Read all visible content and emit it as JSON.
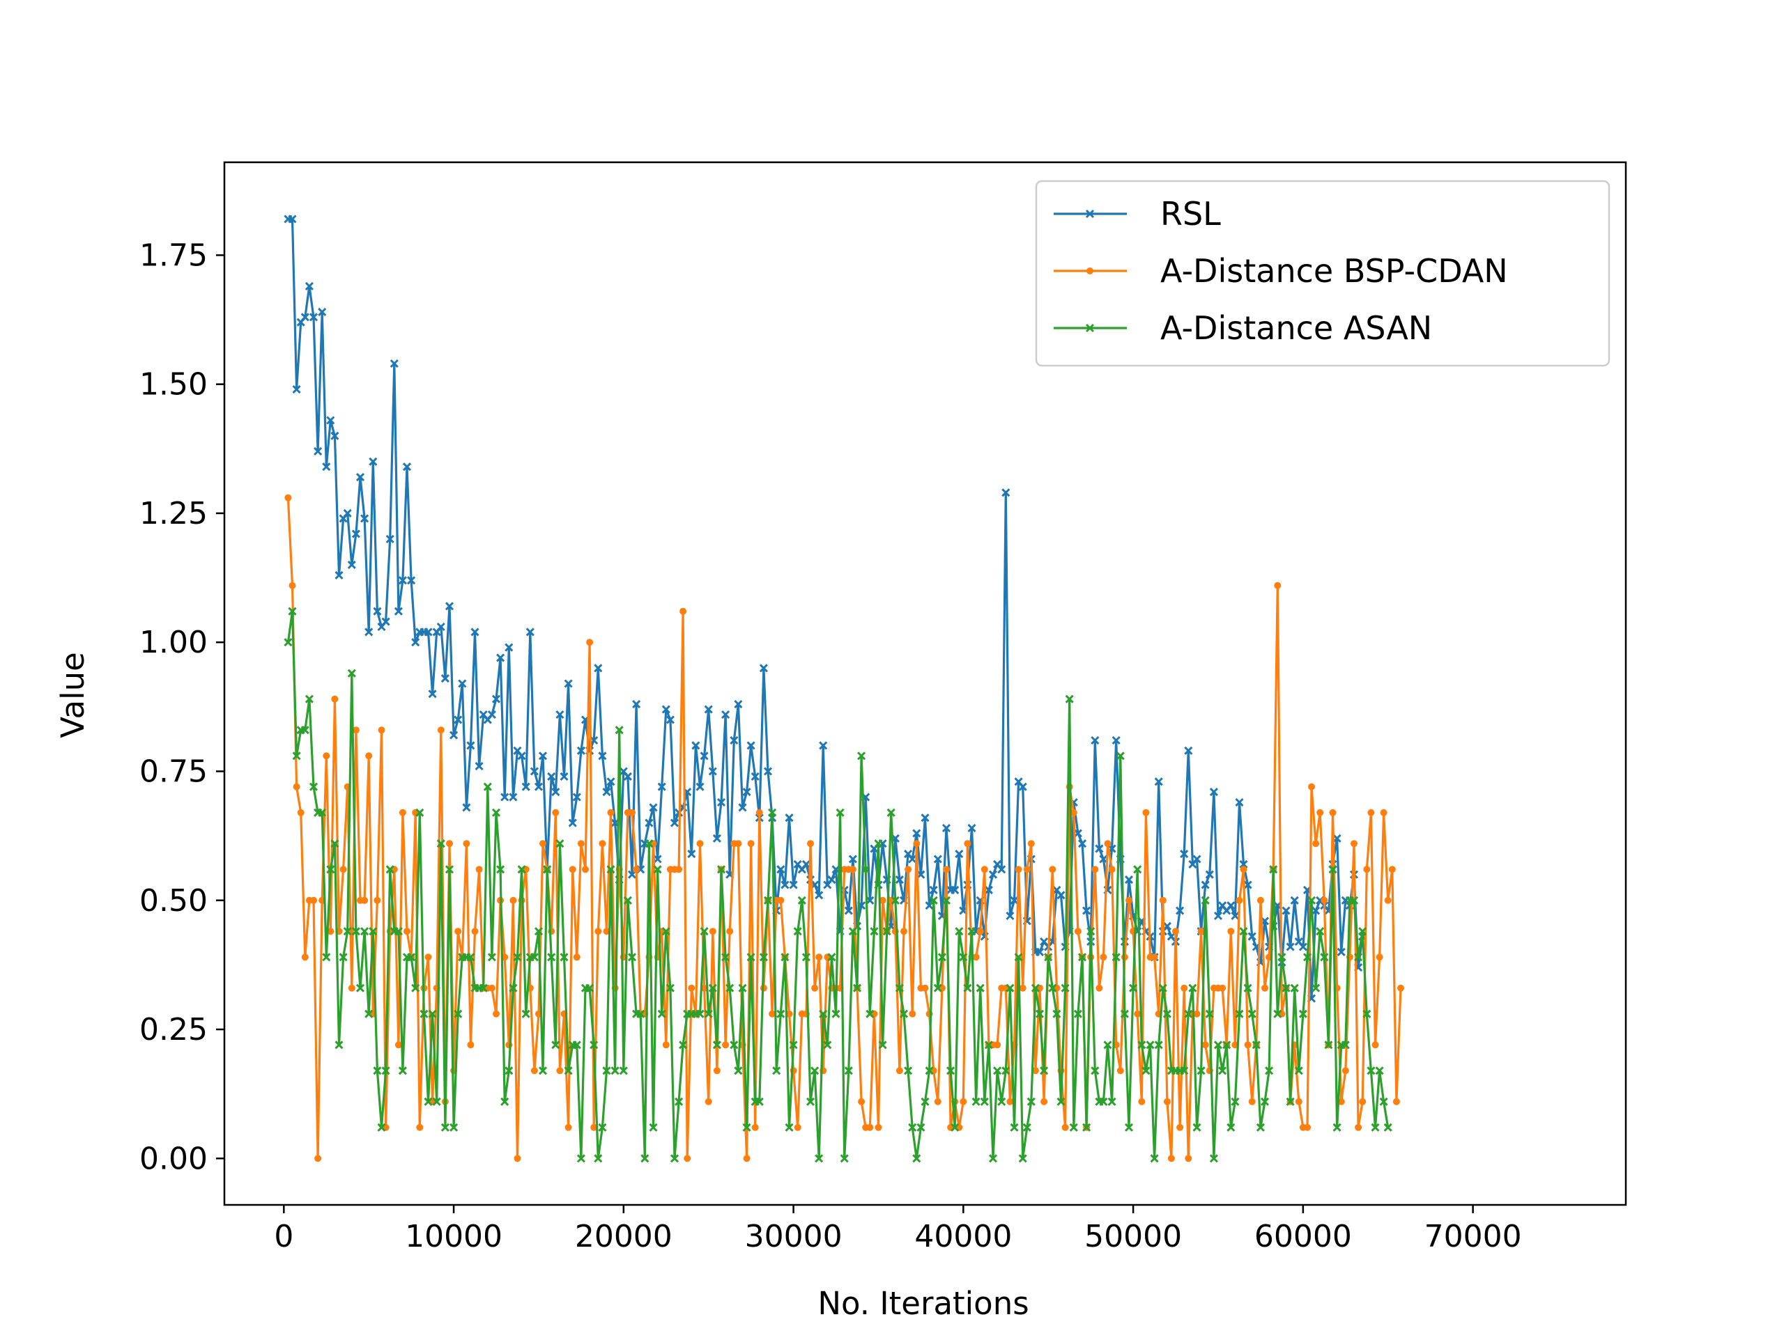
{
  "chart_data": {
    "type": "line",
    "title": "",
    "xlabel": "No. Iterations",
    "ylabel": "Value",
    "xlim": [
      -3500,
      79000
    ],
    "ylim": [
      -0.09,
      1.93
    ],
    "x_ticks": [
      0,
      10000,
      20000,
      30000,
      40000,
      50000,
      60000,
      70000
    ],
    "x_tick_labels": [
      "0",
      "10000",
      "20000",
      "30000",
      "40000",
      "50000",
      "60000",
      "70000"
    ],
    "y_ticks": [
      0.0,
      0.25,
      0.5,
      0.75,
      1.0,
      1.25,
      1.5,
      1.75
    ],
    "y_tick_labels": [
      "0.00",
      "0.25",
      "0.50",
      "0.75",
      "1.00",
      "1.25",
      "1.50",
      "1.75"
    ],
    "grid": false,
    "legend_position": "top-right",
    "x_start": 250,
    "x_step": 250,
    "series": [
      {
        "name": "RSL",
        "color": "#1f77b4",
        "marker": "x",
        "values": [
          1.82,
          1.82,
          1.49,
          1.62,
          1.63,
          1.69,
          1.63,
          1.37,
          1.64,
          1.34,
          1.43,
          1.4,
          1.13,
          1.24,
          1.25,
          1.15,
          1.21,
          1.32,
          1.24,
          1.02,
          1.35,
          1.06,
          1.03,
          1.04,
          1.2,
          1.54,
          1.06,
          1.12,
          1.34,
          1.12,
          1.0,
          1.02,
          1.02,
          1.02,
          0.9,
          1.02,
          1.03,
          0.93,
          1.07,
          0.82,
          0.85,
          0.92,
          0.68,
          0.8,
          1.02,
          0.76,
          0.86,
          0.85,
          0.86,
          0.89,
          0.97,
          0.7,
          0.99,
          0.7,
          0.79,
          0.78,
          0.72,
          1.02,
          0.75,
          0.72,
          0.78,
          0.56,
          0.74,
          0.71,
          0.86,
          0.74,
          0.92,
          0.65,
          0.7,
          0.79,
          0.85,
          0.79,
          0.81,
          0.95,
          0.78,
          0.71,
          0.73,
          0.65,
          0.54,
          0.75,
          0.74,
          0.55,
          0.88,
          0.56,
          0.61,
          0.65,
          0.68,
          0.58,
          0.72,
          0.87,
          0.85,
          0.65,
          0.67,
          0.68,
          0.71,
          0.59,
          0.8,
          0.72,
          0.78,
          0.87,
          0.75,
          0.62,
          0.69,
          0.86,
          0.55,
          0.81,
          0.88,
          0.68,
          0.71,
          0.8,
          0.74,
          0.66,
          0.95,
          0.75,
          0.66,
          0.48,
          0.56,
          0.53,
          0.66,
          0.53,
          0.57,
          0.56,
          0.57,
          0.54,
          0.53,
          0.51,
          0.8,
          0.53,
          0.54,
          0.56,
          0.44,
          0.52,
          0.48,
          0.58,
          0.45,
          0.49,
          0.7,
          0.5,
          0.6,
          0.53,
          0.61,
          0.54,
          0.45,
          0.62,
          0.54,
          0.5,
          0.59,
          0.58,
          0.63,
          0.55,
          0.66,
          0.49,
          0.52,
          0.58,
          0.47,
          0.64,
          0.52,
          0.52,
          0.59,
          0.48,
          0.53,
          0.64,
          0.44,
          0.5,
          0.43,
          0.52,
          0.55,
          0.57,
          0.56,
          1.29,
          0.47,
          0.5,
          0.73,
          0.72,
          0.46,
          0.58,
          0.4,
          0.4,
          0.42,
          0.41,
          0.42,
          0.52,
          0.51,
          0.41,
          0.44,
          0.69,
          0.63,
          0.61,
          0.48,
          0.42,
          0.81,
          0.6,
          0.58,
          0.52,
          0.6,
          0.81,
          0.58,
          0.42,
          0.54,
          0.47,
          0.44,
          0.46,
          0.44,
          0.43,
          0.39,
          0.73,
          0.44,
          0.45,
          0.43,
          0.42,
          0.48,
          0.59,
          0.79,
          0.57,
          0.58,
          0.44,
          0.53,
          0.55,
          0.71,
          0.47,
          0.49,
          0.48,
          0.49,
          0.47,
          0.69,
          0.57,
          0.53,
          0.43,
          0.41,
          0.38,
          0.46,
          0.41,
          0.45,
          0.49,
          0.38,
          0.48,
          0.41,
          0.5,
          0.42,
          0.41,
          0.52,
          0.31,
          0.48,
          0.5,
          0.49,
          0.48,
          0.57,
          0.62,
          0.4,
          0.5,
          0.49,
          0.55,
          0.37,
          0.43
        ]
      },
      {
        "name": "A-Distance BSP-CDAN",
        "color": "#ff7f0e",
        "marker": "dot",
        "values": [
          1.28,
          1.11,
          0.72,
          0.67,
          0.39,
          0.5,
          0.5,
          0.0,
          0.5,
          0.78,
          0.44,
          0.89,
          0.44,
          0.56,
          0.72,
          0.33,
          0.83,
          0.5,
          0.5,
          0.78,
          0.28,
          0.5,
          0.83,
          0.06,
          0.44,
          0.56,
          0.22,
          0.67,
          0.44,
          0.39,
          0.67,
          0.06,
          0.33,
          0.39,
          0.11,
          0.33,
          0.83,
          0.11,
          0.61,
          0.17,
          0.44,
          0.39,
          0.61,
          0.22,
          0.44,
          0.56,
          0.33,
          0.33,
          0.33,
          0.28,
          0.5,
          0.39,
          0.22,
          0.5,
          0.0,
          0.5,
          0.56,
          0.33,
          0.17,
          0.28,
          0.61,
          0.56,
          0.44,
          0.67,
          0.17,
          0.28,
          0.06,
          0.56,
          0.39,
          0.61,
          0.56,
          1.0,
          0.06,
          0.44,
          0.61,
          0.44,
          0.67,
          0.33,
          0.56,
          0.39,
          0.67,
          0.67,
          0.56,
          0.28,
          0.28,
          0.39,
          0.61,
          0.39,
          0.44,
          0.22,
          0.56,
          0.56,
          0.56,
          1.06,
          0.0,
          0.33,
          0.28,
          0.61,
          0.33,
          0.11,
          0.44,
          0.17,
          0.56,
          0.22,
          0.44,
          0.61,
          0.61,
          0.22,
          0.0,
          0.61,
          0.06,
          0.67,
          0.33,
          0.5,
          0.28,
          0.5,
          0.5,
          0.39,
          0.28,
          0.17,
          0.06,
          0.28,
          0.28,
          0.61,
          0.33,
          0.39,
          0.17,
          0.39,
          0.33,
          0.33,
          0.33,
          0.56,
          0.56,
          0.56,
          0.33,
          0.11,
          0.06,
          0.06,
          0.28,
          0.06,
          0.5,
          0.44,
          0.5,
          0.44,
          0.17,
          0.44,
          0.56,
          0.28,
          0.61,
          0.33,
          0.33,
          0.28,
          0.17,
          0.11,
          0.33,
          0.56,
          0.06,
          0.11,
          0.06,
          0.11,
          0.61,
          0.39,
          0.39,
          0.44,
          0.56,
          0.22,
          0.22,
          0.22,
          0.33,
          0.33,
          0.11,
          0.22,
          0.56,
          0.33,
          0.56,
          0.61,
          0.17,
          0.33,
          0.11,
          0.39,
          0.56,
          0.33,
          0.17,
          0.06,
          0.72,
          0.67,
          0.44,
          0.39,
          0.06,
          0.39,
          0.56,
          0.33,
          0.39,
          0.61,
          0.56,
          0.22,
          0.17,
          0.39,
          0.5,
          0.44,
          0.28,
          0.11,
          0.67,
          0.39,
          0.39,
          0.28,
          0.5,
          0.11,
          0.0,
          0.44,
          0.06,
          0.33,
          0.0,
          0.28,
          0.28,
          0.44,
          0.22,
          0.17,
          0.33,
          0.33,
          0.33,
          0.22,
          0.44,
          0.22,
          0.5,
          0.56,
          0.22,
          0.11,
          0.22,
          0.5,
          0.33,
          0.39,
          0.56,
          1.11,
          0.28,
          0.33,
          0.11,
          0.22,
          0.11,
          0.06,
          0.06,
          0.72,
          0.61,
          0.67,
          0.5,
          0.22,
          0.67,
          0.33,
          0.11,
          0.17,
          0.39,
          0.61,
          0.06,
          0.11,
          0.56,
          0.67,
          0.22,
          0.39,
          0.67,
          0.5,
          0.56,
          0.11,
          0.33
        ]
      },
      {
        "name": "A-Distance ASAN",
        "color": "#2ca02c",
        "marker": "x",
        "values": [
          1.0,
          1.06,
          0.78,
          0.83,
          0.83,
          0.89,
          0.72,
          0.67,
          0.67,
          0.39,
          0.56,
          0.61,
          0.22,
          0.39,
          0.44,
          0.94,
          0.44,
          0.33,
          0.44,
          0.28,
          0.44,
          0.17,
          0.06,
          0.17,
          0.56,
          0.44,
          0.44,
          0.17,
          0.39,
          0.39,
          0.33,
          0.67,
          0.28,
          0.11,
          0.28,
          0.11,
          0.61,
          0.06,
          0.56,
          0.06,
          0.28,
          0.39,
          0.39,
          0.39,
          0.33,
          0.33,
          0.33,
          0.72,
          0.39,
          0.67,
          0.56,
          0.11,
          0.17,
          0.33,
          0.39,
          0.56,
          0.28,
          0.39,
          0.39,
          0.44,
          0.17,
          0.56,
          0.39,
          0.22,
          0.61,
          0.39,
          0.17,
          0.22,
          0.22,
          0.0,
          0.33,
          0.33,
          0.22,
          0.0,
          0.06,
          0.17,
          0.56,
          0.17,
          0.83,
          0.17,
          0.5,
          0.39,
          0.28,
          0.28,
          0.0,
          0.61,
          0.06,
          0.56,
          0.28,
          0.44,
          0.33,
          0.0,
          0.11,
          0.22,
          0.28,
          0.28,
          0.28,
          0.28,
          0.44,
          0.28,
          0.33,
          0.22,
          0.56,
          0.39,
          0.33,
          0.22,
          0.17,
          0.33,
          0.06,
          0.39,
          0.11,
          0.11,
          0.39,
          0.5,
          0.67,
          0.17,
          0.28,
          0.39,
          0.06,
          0.22,
          0.44,
          0.5,
          0.39,
          0.11,
          0.17,
          0.0,
          0.28,
          0.22,
          0.39,
          0.28,
          0.67,
          0.0,
          0.17,
          0.44,
          0.33,
          0.78,
          0.56,
          0.28,
          0.44,
          0.61,
          0.22,
          0.44,
          0.67,
          0.5,
          0.33,
          0.28,
          0.17,
          0.06,
          0.0,
          0.06,
          0.11,
          0.17,
          0.5,
          0.33,
          0.39,
          0.5,
          0.17,
          0.06,
          0.44,
          0.39,
          0.33,
          0.44,
          0.11,
          0.33,
          0.11,
          0.22,
          0.0,
          0.17,
          0.11,
          0.17,
          0.33,
          0.06,
          0.39,
          0.0,
          0.06,
          0.11,
          0.33,
          0.28,
          0.17,
          0.39,
          0.33,
          0.28,
          0.11,
          0.33,
          0.89,
          0.06,
          0.28,
          0.39,
          0.06,
          0.44,
          0.17,
          0.11,
          0.11,
          0.22,
          0.11,
          0.39,
          0.78,
          0.28,
          0.06,
          0.33,
          0.56,
          0.22,
          0.17,
          0.22,
          0.0,
          0.22,
          0.33,
          0.28,
          0.17,
          0.17,
          0.17,
          0.17,
          0.28,
          0.33,
          0.06,
          0.17,
          0.5,
          0.28,
          0.0,
          0.22,
          0.17,
          0.22,
          0.06,
          0.11,
          0.28,
          0.44,
          0.33,
          0.28,
          0.22,
          0.06,
          0.11,
          0.17,
          0.56,
          0.28,
          0.39,
          0.33,
          0.11,
          0.33,
          0.17,
          0.28,
          0.39,
          0.5,
          0.33,
          0.44,
          0.39,
          0.22,
          0.56,
          0.06,
          0.22,
          0.22,
          0.5,
          0.5,
          0.39,
          0.44,
          0.28,
          0.17,
          0.06,
          0.17,
          0.11,
          0.06
        ]
      }
    ]
  }
}
